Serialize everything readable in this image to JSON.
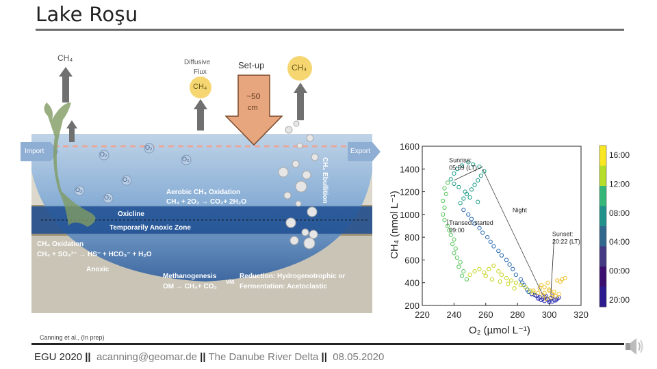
{
  "slide": {
    "title": "Lake Roşu",
    "citation": "Canning et al., (In prep)"
  },
  "footer": {
    "conference": "EGU 2020",
    "sep": "||",
    "email": "acanning@geomar.de",
    "topic": "The Danube River Delta",
    "date": "08.05.2020"
  },
  "diagram": {
    "ch4_left": "CH₄",
    "diffusive_flux_1": "Diffusive",
    "diffusive_flux_2": "Flux",
    "ch4_diffusive": "CH₄",
    "setup": "Set-up",
    "setup_depth_1": "~50",
    "setup_depth_2": "cm",
    "ch4_right": "CH₄",
    "import": "Import",
    "export": "Export",
    "o2": "O₂",
    "ebullition": "CH₄ Ebullition",
    "aerobic_1": "Aerobic CH₄ Oxidation",
    "aerobic_2": "CH₄ + 2O₂ → CO₂+ 2H₂O",
    "oxicline": "Oxicline",
    "anoxic_zone": "Temporarily Anoxic Zone",
    "ch4_oxidation_1": "CH₄ Oxidation",
    "ch4_oxidation_2": "CH₄ + SO₄²⁻ → HS⁻ + HCO₃⁻ + H₂O",
    "anoxic": "Anoxic",
    "methanogenesis_1": "Methanogenesis",
    "methanogenesis_2": "OM → CH₄+ CO₂",
    "via": "via",
    "reduction_1": "Reduction: Hydrogenotrophic  or",
    "reduction_2": "Fermentation: Acetoclastic"
  },
  "chart_data": {
    "type": "scatter",
    "xlabel": "O₂ (µmol L⁻¹)",
    "ylabel": "CH₄ (nmol L⁻¹)",
    "xlim": [
      220,
      320
    ],
    "ylim": [
      200,
      1600
    ],
    "xticks": [
      "220",
      "240",
      "260",
      "280",
      "300",
      "320"
    ],
    "yticks": [
      "200",
      "400",
      "600",
      "800",
      "1000",
      "1200",
      "1400",
      "1600"
    ],
    "colorbar": {
      "ticks": [
        "16:00",
        "12:00",
        "08:00",
        "04:00",
        "00:00",
        "20:00"
      ],
      "colors": [
        "#f9e721",
        "#b5de2b",
        "#35b779",
        "#21918c",
        "#31688e",
        "#443983",
        "#3b0f70",
        "#2b1b8e"
      ]
    },
    "annotations": [
      {
        "text": "Sunrise:",
        "text2": "05:59 (LT)",
        "x": 236,
        "y": 1460
      },
      {
        "text": "Night",
        "text2": "",
        "x": 276,
        "y": 1020
      },
      {
        "text": "Transect started",
        "text2": "09:00",
        "x": 236,
        "y": 910
      },
      {
        "text": "Sunset:",
        "text2": "20:22 (LT)",
        "x": 301,
        "y": 810
      }
    ],
    "series": [
      {
        "points": [
          [
            300,
            230
          ],
          [
            302,
            235
          ],
          [
            297,
            240
          ],
          [
            304,
            245
          ],
          [
            299,
            255
          ],
          [
            296,
            260
          ],
          [
            301,
            265
          ],
          [
            294,
            270
          ],
          [
            298,
            280
          ],
          [
            292,
            285
          ],
          [
            305,
            260
          ],
          [
            303,
            250
          ],
          [
            295,
            248
          ],
          [
            300,
            245
          ],
          [
            306,
            270
          ],
          [
            293,
            262
          ],
          [
            297,
            275
          ],
          [
            291,
            290
          ],
          [
            289,
            300
          ],
          [
            302,
            285
          ]
        ],
        "color": "#2b2fb0"
      },
      {
        "points": [
          [
            286,
            340
          ],
          [
            284,
            380
          ],
          [
            282,
            430
          ],
          [
            279,
            470
          ],
          [
            277,
            520
          ],
          [
            275,
            560
          ],
          [
            273,
            600
          ],
          [
            270,
            640
          ],
          [
            268,
            680
          ],
          [
            265,
            720
          ],
          [
            263,
            760
          ],
          [
            261,
            800
          ],
          [
            258,
            840
          ],
          [
            256,
            880
          ],
          [
            253,
            920
          ],
          [
            251,
            960
          ],
          [
            249,
            1000
          ],
          [
            246,
            1040
          ],
          [
            287,
            320
          ],
          [
            283,
            400
          ]
        ],
        "color": "#2f6cb0"
      },
      {
        "points": [
          [
            244,
            1100
          ],
          [
            246,
            1140
          ],
          [
            248,
            1180
          ],
          [
            251,
            1220
          ],
          [
            253,
            1260
          ],
          [
            255,
            1300
          ],
          [
            257,
            1340
          ],
          [
            259,
            1380
          ],
          [
            256,
            1420
          ],
          [
            252,
            1440
          ],
          [
            249,
            1460
          ],
          [
            245,
            1430
          ],
          [
            242,
            1400
          ],
          [
            240,
            1360
          ],
          [
            238,
            1310
          ],
          [
            240,
            1270
          ],
          [
            243,
            1240
          ],
          [
            247,
            1200
          ],
          [
            250,
            1150
          ],
          [
            255,
            1110
          ]
        ],
        "color": "#23a08a"
      },
      {
        "points": [
          [
            236,
            1280
          ],
          [
            234,
            1230
          ],
          [
            235,
            1180
          ],
          [
            233,
            1120
          ],
          [
            234,
            1060
          ],
          [
            233,
            1000
          ],
          [
            234,
            950
          ],
          [
            236,
            900
          ],
          [
            237,
            860
          ],
          [
            238,
            820
          ],
          [
            240,
            780
          ],
          [
            239,
            740
          ],
          [
            241,
            700
          ],
          [
            240,
            660
          ],
          [
            242,
            620
          ],
          [
            244,
            580
          ],
          [
            243,
            540
          ],
          [
            246,
            500
          ],
          [
            245,
            460
          ],
          [
            248,
            430
          ]
        ],
        "color": "#5ec962"
      },
      {
        "points": [
          [
            250,
            470
          ],
          [
            253,
            500
          ],
          [
            256,
            520
          ],
          [
            259,
            490
          ],
          [
            262,
            520
          ],
          [
            265,
            550
          ],
          [
            268,
            500
          ],
          [
            270,
            470
          ],
          [
            273,
            440
          ],
          [
            276,
            420
          ],
          [
            279,
            400
          ],
          [
            282,
            380
          ],
          [
            285,
            360
          ],
          [
            288,
            330
          ],
          [
            290,
            310
          ],
          [
            260,
            460
          ],
          [
            264,
            430
          ],
          [
            269,
            410
          ],
          [
            274,
            390
          ],
          [
            278,
            350
          ]
        ],
        "color": "#c8d62a"
      },
      {
        "points": [
          [
            298,
            260
          ],
          [
            301,
            270
          ],
          [
            304,
            280
          ],
          [
            306,
            300
          ],
          [
            303,
            320
          ],
          [
            300,
            340
          ],
          [
            297,
            360
          ],
          [
            295,
            380
          ],
          [
            299,
            400
          ],
          [
            305,
            420
          ],
          [
            308,
            430
          ],
          [
            310,
            440
          ],
          [
            307,
            410
          ],
          [
            302,
            300
          ],
          [
            296,
            290
          ],
          [
            293,
            310
          ],
          [
            290,
            330
          ],
          [
            294,
            350
          ],
          [
            297,
            310
          ],
          [
            300,
            330
          ]
        ],
        "color": "#f1c232"
      }
    ]
  }
}
